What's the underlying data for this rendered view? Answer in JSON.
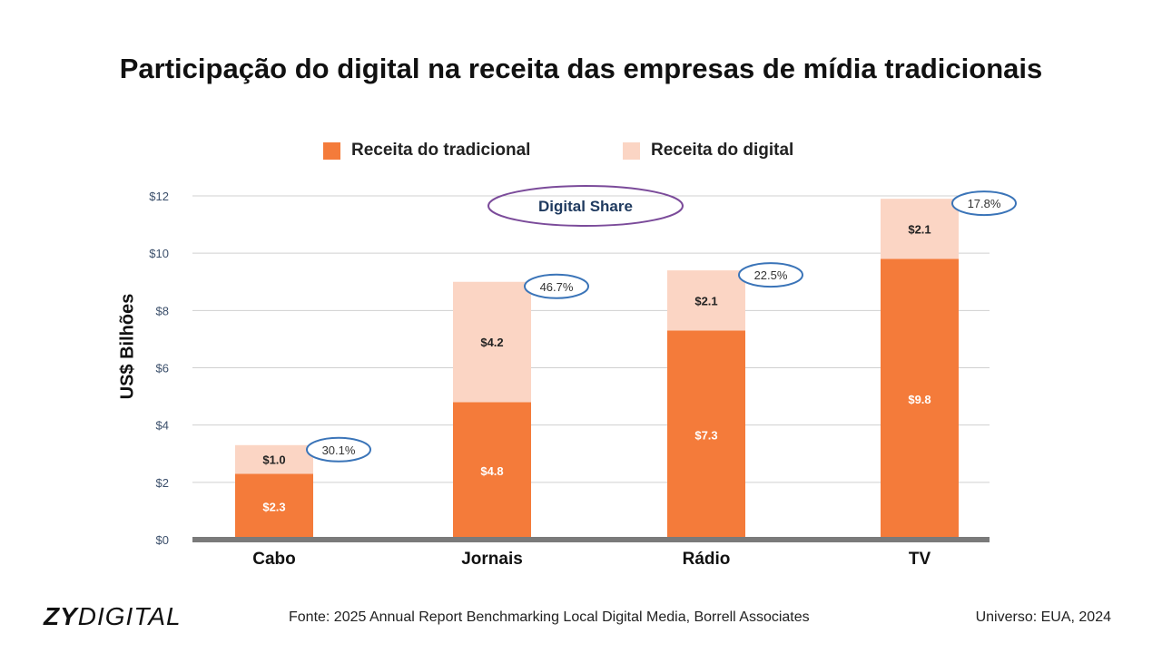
{
  "title": "Participação do digital na receita das empresas de mídia tradicionais",
  "colors": {
    "traditional": "#F47B3A",
    "digital": "#FBD5C4",
    "callout": "#3A74B8",
    "digital_share_ring": "#7B4B9A",
    "axis": "#7A7A7A",
    "grid": "#D0D0D0"
  },
  "chart_data": {
    "type": "bar",
    "stacked": true,
    "categories": [
      "Cabo",
      "Jornais",
      "Rádio",
      "TV"
    ],
    "series": [
      {
        "name": "Receita do tradicional",
        "values": [
          2.3,
          4.8,
          7.3,
          9.8
        ],
        "labels": [
          "$2.3",
          "$4.8",
          "$7.3",
          "$9.8"
        ]
      },
      {
        "name": "Receita do digital",
        "values": [
          1.0,
          4.2,
          2.1,
          2.1
        ],
        "labels": [
          "$1.0",
          "$4.2",
          "$2.1",
          "$2.1"
        ]
      }
    ],
    "digital_share": [
      "30.1%",
      "46.7%",
      "22.5%",
      "17.8%"
    ],
    "digital_share_label": "Digital Share",
    "ylabel": "US$ Bilhões",
    "ylim": [
      0,
      12
    ],
    "yticks": [
      "$0",
      "$2",
      "$4",
      "$6",
      "$8",
      "$10",
      "$12"
    ],
    "grid": true,
    "legend_position": "top"
  },
  "footer": {
    "logo_bold": "ZY",
    "logo_light": "DIGITAL",
    "source": "Fonte: 2025 Annual Report Benchmarking Local Digital Media, Borrell Associates",
    "universe": "Universo: EUA, 2024"
  }
}
